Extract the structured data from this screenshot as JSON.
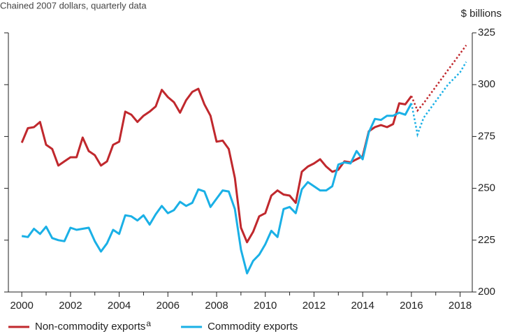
{
  "chart_data": {
    "type": "line",
    "subtitle": "Chained 2007 dollars, quarterly data",
    "y_axis_label": "$ billions",
    "xlim": [
      1999.45,
      2018.5
    ],
    "xticks": [
      2000,
      2002,
      2004,
      2006,
      2008,
      2010,
      2012,
      2014,
      2016,
      2018
    ],
    "x_minor_ticks": [
      2001,
      2003,
      2005,
      2007,
      2009,
      2011,
      2013,
      2015,
      2017
    ],
    "ylim": [
      200,
      325
    ],
    "yticks": [
      200,
      225,
      250,
      275,
      300,
      325
    ],
    "x_start": 2000,
    "x_step": 0.25,
    "series": [
      {
        "name": "Non-commodity exports",
        "footnote_marker": "a",
        "color": "#c0282d",
        "values": [
          272,
          279,
          279.5,
          282,
          271,
          269,
          261,
          263,
          265,
          265,
          274.5,
          268,
          266,
          261,
          263,
          271,
          272.5,
          287,
          285.5,
          282,
          285,
          287,
          289.5,
          297.5,
          294,
          291.5,
          286.5,
          292.5,
          296.5,
          298,
          290.5,
          285,
          272.5,
          273,
          269,
          255,
          231,
          224,
          229,
          236.5,
          238,
          246.5,
          249,
          247,
          246.5,
          243,
          258,
          260.5,
          262,
          264,
          260.5,
          258,
          259,
          263,
          262.5,
          264,
          265.5,
          277.5,
          279.5,
          280.5,
          279.5,
          281,
          291,
          290.5,
          294.5
        ],
        "projection": {
          "x": [
            2016,
            2016.25,
            2016.5,
            2016.75,
            2017,
            2017.25,
            2017.5,
            2017.75,
            2018,
            2018.25
          ],
          "values": [
            294.5,
            287.5,
            291,
            295,
            299,
            303,
            307,
            311,
            315,
            319
          ]
        }
      },
      {
        "name": "Commodity exports",
        "color": "#1ab0e6",
        "values": [
          227,
          226.5,
          230.5,
          228,
          231.5,
          226,
          225,
          224.5,
          231,
          230,
          230.5,
          231,
          224.5,
          219.5,
          223.5,
          230,
          228,
          237,
          236.5,
          234.5,
          237,
          232.5,
          237.5,
          241.5,
          238,
          239.5,
          243.5,
          241.5,
          243,
          249.5,
          248.5,
          241,
          245,
          249,
          248.5,
          240,
          220.5,
          209,
          215,
          218,
          223,
          229.5,
          226.5,
          240,
          241,
          238,
          249.5,
          253,
          251,
          249,
          249,
          251,
          261.5,
          262.5,
          262,
          268,
          264,
          277,
          283.5,
          283,
          285,
          285,
          286.5,
          285.5,
          291
        ],
        "projection": {
          "x": [
            2016,
            2016.25,
            2016.5,
            2016.75,
            2017,
            2017.25,
            2017.5,
            2017.75,
            2018,
            2018.25
          ],
          "values": [
            291,
            276,
            284,
            288,
            292,
            296,
            300,
            303,
            306,
            311
          ]
        }
      }
    ]
  }
}
